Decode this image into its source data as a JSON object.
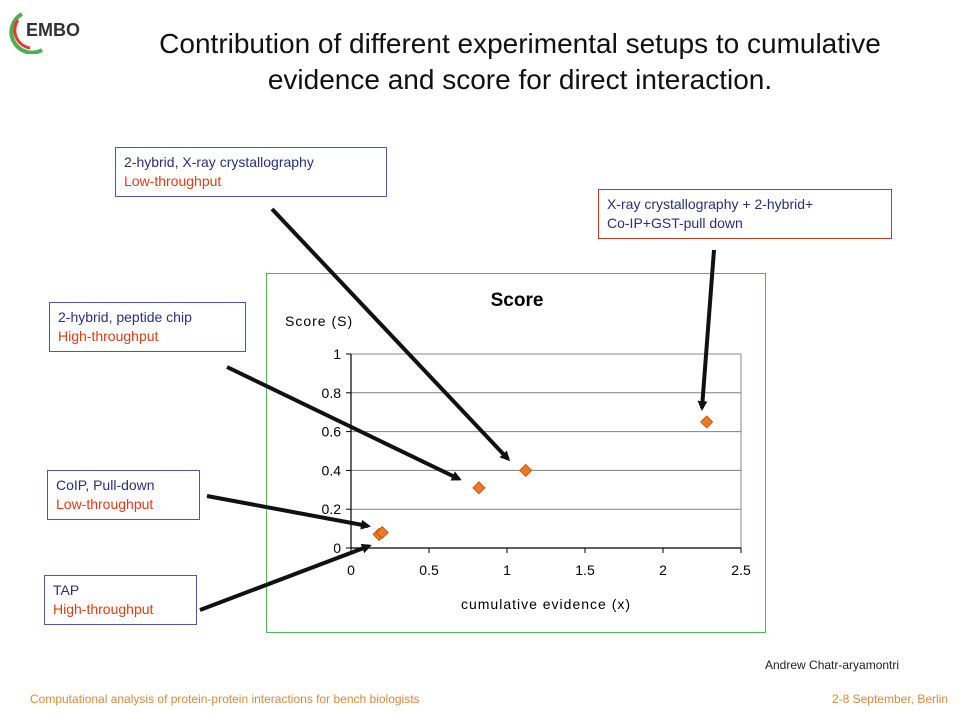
{
  "logo": {
    "text": "EMBO"
  },
  "slide": {
    "title_line1": "Contribution of different experimental setups to cumulative",
    "title_line2": "evidence and score for direct interaction."
  },
  "callouts": [
    {
      "line1": "2-hybrid, X-ray crystallography",
      "line2": "Low-throughput"
    },
    {
      "line1": "X-ray crystallography + 2-hybrid+",
      "line2": "Co-IP+GST-pull down"
    },
    {
      "line1": "2-hybrid, peptide chip",
      "line2": "High-throughput"
    },
    {
      "line1": "CoIP, Pull-down",
      "line2": "Low-throughput"
    },
    {
      "line1": "TAP",
      "line2": "High-throughput"
    }
  ],
  "author": "Andrew Chatr-aryamontri",
  "footer": {
    "left": "Computational analysis of protein-protein interactions for bench biologists",
    "right": "2-8 September, Berlin"
  },
  "colors": {
    "marker": "#f07820",
    "arrow": "#111111",
    "frame": "#4fba4f",
    "callout_text": "#2a2f7a",
    "callout_accent": "#e03c10"
  },
  "chart_data": {
    "type": "scatter",
    "title": "Score",
    "xlabel": "cumulative evidence (x)",
    "ylabel": "Score (S)",
    "xlim": [
      0,
      2.5
    ],
    "ylim": [
      0,
      1
    ],
    "xticks": [
      "0",
      "0.5",
      "1",
      "1.5",
      "2",
      "2.5"
    ],
    "yticks": [
      "0",
      "0.2",
      "0.4",
      "0.6",
      "0.8",
      "1"
    ],
    "grid": "horizontal",
    "legend": "none",
    "points": [
      {
        "x": 0.18,
        "y": 0.07
      },
      {
        "x": 0.2,
        "y": 0.08
      },
      {
        "x": 0.82,
        "y": 0.31
      },
      {
        "x": 1.12,
        "y": 0.4
      },
      {
        "x": 2.28,
        "y": 0.65
      }
    ]
  }
}
